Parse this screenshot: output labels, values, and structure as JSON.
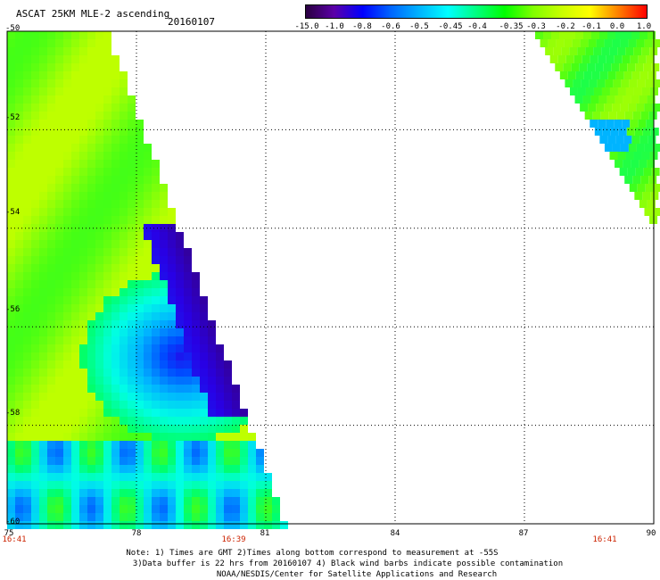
{
  "header": {
    "title": "ASCAT 25KM MLE-2 ascending",
    "date": "20160107"
  },
  "colorbar": {
    "labels": [
      "-15.0",
      "-1.0",
      "-0.8",
      "-0.6",
      "-0.5",
      "-0.45",
      "-0.4",
      "-0.35",
      "-0.3",
      "-0.2",
      "-0.1",
      "0.0",
      "1.0"
    ],
    "colors": [
      "#2a0040",
      "#5b00a8",
      "#0000ff",
      "#0066ff",
      "#00b4ff",
      "#00ffff",
      "#00ff80",
      "#00ff00",
      "#80ff00",
      "#c8ff00",
      "#ffff00",
      "#ff8000",
      "#ff0000"
    ]
  },
  "map": {
    "lon_range": [
      75,
      90
    ],
    "lat_range": [
      -50,
      -60
    ],
    "lat_labels": [
      "-50",
      "-52",
      "-54",
      "-56",
      "-58",
      "-60"
    ],
    "lon_labels": [
      "75",
      "78",
      "81",
      "84",
      "87",
      "90"
    ],
    "time_labels": [
      "16:41",
      "16:39",
      "16:41"
    ],
    "grid": true
  },
  "notes": {
    "line1": "Note: 1) Times are GMT 2)Times along bottom correspond to measurement at -55S",
    "line2": "3)Data buffer is 22 hrs from 20160107 4) Black wind barbs indicate possible contamination",
    "line3": "NOAA/NESDIS/Center for Satellite Applications and Research"
  }
}
